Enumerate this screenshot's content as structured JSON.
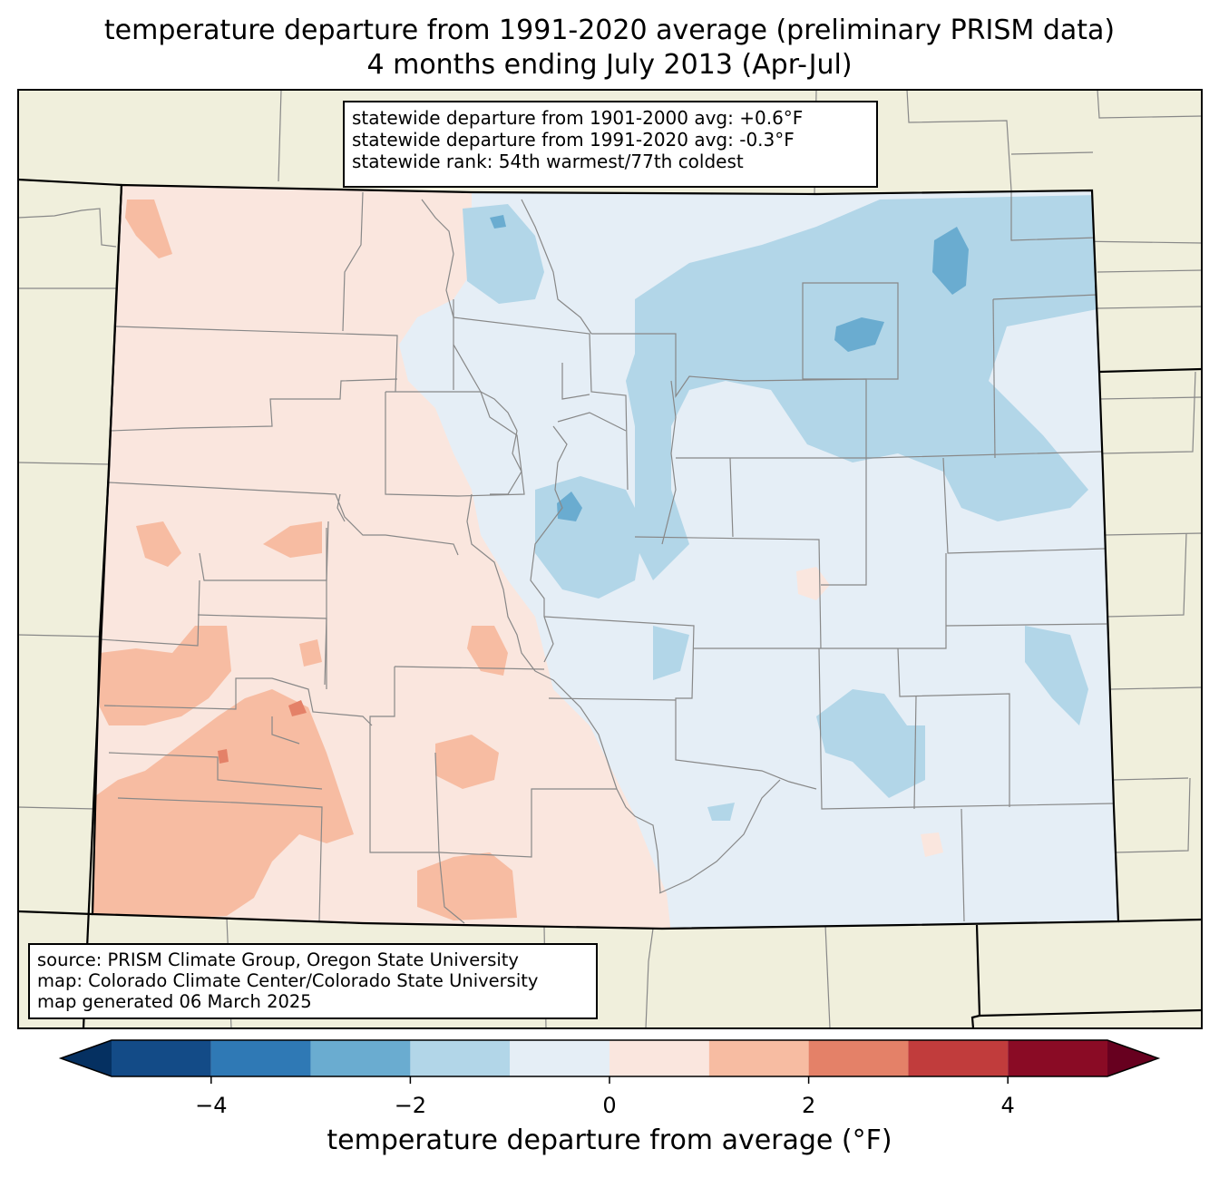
{
  "title": {
    "line1": "temperature departure from 1991-2020 average (preliminary PRISM data)",
    "line2": "4 months ending July 2013 (Apr-Jul)"
  },
  "stats": {
    "line1": "statewide departure from 1901-2000 avg: +0.6°F",
    "line2": "statewide departure from 1991-2020 avg: -0.3°F",
    "line3": "statewide rank: 54th warmest/77th coldest"
  },
  "source": {
    "line1": "source: PRISM Climate Group, Oregon State University",
    "line2": "map: Colorado Climate Center/Colorado State University",
    "line3": "map generated 06 March 2025"
  },
  "colorbar": {
    "label": "temperature departure from average (°F)",
    "min": -5,
    "max": 5,
    "bins": [
      {
        "from": -5,
        "to": -4,
        "color": "#134b87"
      },
      {
        "from": -4,
        "to": -3,
        "color": "#2f79b5"
      },
      {
        "from": -3,
        "to": -2,
        "color": "#6aacd0"
      },
      {
        "from": -2,
        "to": -1,
        "color": "#b2d6e8"
      },
      {
        "from": -1,
        "to": 0,
        "color": "#e5eef6"
      },
      {
        "from": 0,
        "to": 1,
        "color": "#fae6de"
      },
      {
        "from": 1,
        "to": 2,
        "color": "#f7bca2"
      },
      {
        "from": 2,
        "to": 3,
        "color": "#e48168"
      },
      {
        "from": 3,
        "to": 4,
        "color": "#c13c3c"
      },
      {
        "from": 4,
        "to": 5,
        "color": "#8a0b25"
      }
    ],
    "under_color": "#053061",
    "over_color": "#67001f",
    "ticks": [
      {
        "value": -4,
        "label": "−4"
      },
      {
        "value": -2,
        "label": "−2"
      },
      {
        "value": 0,
        "label": "0"
      },
      {
        "value": 2,
        "label": "2"
      },
      {
        "value": 4,
        "label": "4"
      }
    ]
  },
  "colors": {
    "land_outside": "#f0efdc",
    "cool_light": "#e5eef6",
    "cool_mid": "#b2d6e8",
    "cool_dark": "#6aacd0",
    "warm_light": "#fae6de",
    "warm_mid": "#f7bca2",
    "warm_dark": "#e48168"
  }
}
